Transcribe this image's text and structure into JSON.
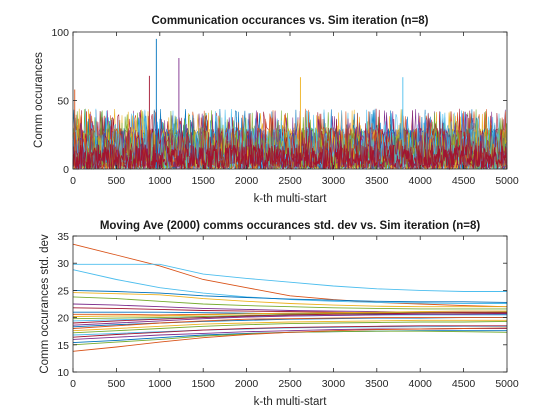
{
  "chart_data": [
    {
      "type": "line",
      "title": "Communication occurances vs. Sim iteration (n=8)",
      "xlabel": "k-th multi-start",
      "ylabel": "Comm occurances",
      "xlim": [
        0,
        5000
      ],
      "ylim": [
        0,
        100
      ],
      "xticks": [
        "0",
        "500",
        "1000",
        "1500",
        "2000",
        "2500",
        "3000",
        "3500",
        "4000",
        "4500",
        "5000"
      ],
      "yticks": [
        "0",
        "50",
        "100"
      ],
      "grid": false,
      "series_count": 28,
      "typical_range": [
        0,
        40
      ],
      "notable_peaks": [
        {
          "x": 960,
          "y": 95
        },
        {
          "x": 1220,
          "y": 81
        },
        {
          "x": 880,
          "y": 68
        },
        {
          "x": 2620,
          "y": 67
        },
        {
          "x": 3800,
          "y": 67
        },
        {
          "x": 20,
          "y": 58
        }
      ],
      "colors": [
        "#0072BD",
        "#D95319",
        "#EDB120",
        "#7E2F8E",
        "#77AC30",
        "#4DBEEE",
        "#A2142F"
      ]
    },
    {
      "type": "line",
      "title": "Moving Ave (2000) comms occurances std. dev vs. Sim iteration (n=8)",
      "xlabel": "k-th multi-start",
      "ylabel": "Comm occurances std. dev",
      "xlim": [
        0,
        5000
      ],
      "ylim": [
        10,
        35
      ],
      "xticks": [
        "0",
        "500",
        "1000",
        "1500",
        "2000",
        "2500",
        "3000",
        "3500",
        "4000",
        "4500",
        "5000"
      ],
      "yticks": [
        "10",
        "15",
        "20",
        "25",
        "30",
        "35"
      ],
      "grid": false,
      "x": [
        0,
        500,
        1000,
        1500,
        2000,
        2500,
        3000,
        3500,
        4000,
        4500,
        5000
      ],
      "series": [
        {
          "color": "#D95319",
          "values": [
            33.5,
            31.5,
            29.5,
            27.0,
            25.5,
            24.0,
            23.3,
            22.8,
            22.5,
            22.2,
            22.0
          ]
        },
        {
          "color": "#4DBEEE",
          "values": [
            29.8,
            29.8,
            29.8,
            28.0,
            27.2,
            26.5,
            25.8,
            25.3,
            25.0,
            24.8,
            24.8
          ]
        },
        {
          "color": "#4DBEEE",
          "values": [
            28.8,
            27.0,
            25.5,
            24.5,
            23.8,
            23.3,
            23.0,
            22.8,
            22.7,
            22.6,
            22.6
          ]
        },
        {
          "color": "#0072BD",
          "values": [
            25.0,
            24.8,
            24.5,
            24.0,
            23.7,
            23.4,
            23.2,
            23.0,
            22.9,
            22.9,
            22.8
          ]
        },
        {
          "color": "#EDB120",
          "values": [
            24.6,
            24.4,
            24.2,
            23.5,
            23.0,
            22.6,
            22.3,
            22.1,
            22.0,
            22.0,
            22.0
          ]
        },
        {
          "color": "#77AC30",
          "values": [
            23.8,
            23.5,
            23.0,
            22.5,
            22.2,
            22.0,
            21.8,
            21.7,
            21.6,
            21.6,
            21.6
          ]
        },
        {
          "color": "#7E2F8E",
          "values": [
            22.5,
            22.3,
            22.0,
            21.7,
            21.5,
            21.3,
            21.2,
            21.1,
            21.0,
            21.0,
            21.0
          ]
        },
        {
          "color": "#A2142F",
          "values": [
            21.8,
            21.7,
            21.5,
            21.3,
            21.2,
            21.1,
            21.0,
            20.9,
            20.9,
            20.8,
            20.8
          ]
        },
        {
          "color": "#0072BD",
          "values": [
            21.0,
            21.0,
            21.0,
            20.9,
            20.8,
            20.7,
            20.7,
            20.6,
            20.6,
            20.6,
            20.6
          ]
        },
        {
          "color": "#D95319",
          "values": [
            20.6,
            20.6,
            20.5,
            20.6,
            20.7,
            20.8,
            20.8,
            20.9,
            20.9,
            20.9,
            21.0
          ]
        },
        {
          "color": "#EDB120",
          "values": [
            20.2,
            20.3,
            20.3,
            20.5,
            20.7,
            20.8,
            20.9,
            21.0,
            21.1,
            21.2,
            21.2
          ]
        },
        {
          "color": "#77AC30",
          "values": [
            19.8,
            19.9,
            20.0,
            20.2,
            20.4,
            20.6,
            20.7,
            20.8,
            20.9,
            20.9,
            21.0
          ]
        },
        {
          "color": "#4DBEEE",
          "values": [
            19.4,
            19.6,
            19.8,
            20.0,
            20.2,
            20.3,
            20.4,
            20.5,
            20.5,
            20.5,
            20.5
          ]
        },
        {
          "color": "#A2142F",
          "values": [
            19.0,
            19.4,
            19.7,
            20.0,
            20.3,
            20.5,
            20.6,
            20.7,
            20.8,
            20.9,
            20.9
          ]
        },
        {
          "color": "#7E2F8E",
          "values": [
            18.6,
            19.0,
            19.4,
            19.8,
            20.1,
            20.3,
            20.4,
            20.5,
            20.6,
            20.6,
            20.7
          ]
        },
        {
          "color": "#0072BD",
          "values": [
            18.3,
            18.7,
            19.0,
            19.3,
            19.5,
            19.7,
            19.8,
            19.9,
            19.9,
            20.0,
            20.0
          ]
        },
        {
          "color": "#D95319",
          "values": [
            18.0,
            18.5,
            19.0,
            19.4,
            19.7,
            19.8,
            19.9,
            20.0,
            20.0,
            20.0,
            20.0
          ]
        },
        {
          "color": "#EDB120",
          "values": [
            17.6,
            18.0,
            18.4,
            18.8,
            19.0,
            19.2,
            19.3,
            19.4,
            19.5,
            19.5,
            19.5
          ]
        },
        {
          "color": "#77AC30",
          "values": [
            17.2,
            17.6,
            18.0,
            18.4,
            18.7,
            18.9,
            19.0,
            19.1,
            19.2,
            19.2,
            19.3
          ]
        },
        {
          "color": "#4DBEEE",
          "values": [
            16.8,
            17.1,
            17.4,
            17.7,
            17.9,
            18.1,
            18.2,
            18.3,
            18.3,
            18.4,
            18.4
          ]
        },
        {
          "color": "#A2142F",
          "values": [
            16.4,
            16.9,
            17.3,
            17.7,
            18.0,
            18.2,
            18.3,
            18.4,
            18.5,
            18.5,
            18.5
          ]
        },
        {
          "color": "#7E2F8E",
          "values": [
            16.0,
            16.4,
            16.8,
            17.1,
            17.4,
            17.6,
            17.8,
            17.9,
            17.9,
            18.0,
            18.0
          ]
        },
        {
          "color": "#0072BD",
          "values": [
            15.4,
            15.8,
            16.3,
            16.8,
            17.1,
            17.3,
            17.4,
            17.5,
            17.6,
            17.6,
            17.6
          ]
        },
        {
          "color": "#77AC30",
          "values": [
            15.0,
            15.5,
            16.0,
            16.6,
            17.0,
            17.3,
            17.4,
            17.5,
            17.5,
            17.4,
            17.3
          ]
        },
        {
          "color": "#D95319",
          "values": [
            13.8,
            14.6,
            15.5,
            16.3,
            16.9,
            17.3,
            17.6,
            17.8,
            17.9,
            18.0,
            18.1
          ]
        }
      ]
    }
  ]
}
